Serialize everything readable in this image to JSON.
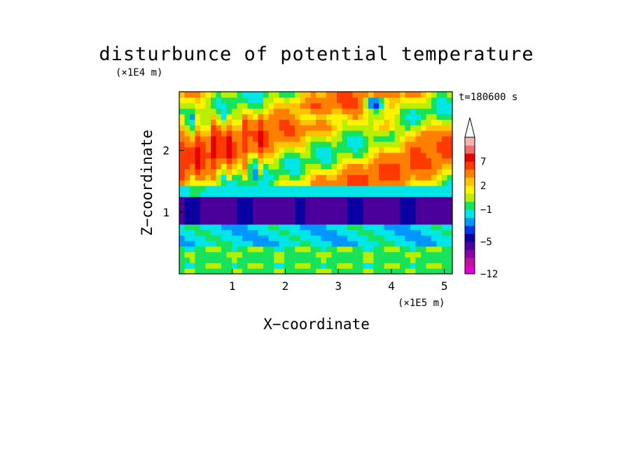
{
  "chart_data": {
    "type": "heatmap",
    "title": "disturbunce of potential temperature",
    "xlabel": "X−coordinate",
    "ylabel": "Z−coordinate",
    "x_unit": "(×1E5 m)",
    "y_unit": "(×1E4 m)",
    "time_label": "t=180600 s",
    "xlim": [
      0,
      5.15
    ],
    "ylim": [
      0,
      2.95
    ],
    "x_ticks": [
      1,
      2,
      3,
      4,
      5
    ],
    "y_ticks": [
      1,
      2
    ],
    "colorbar": {
      "levels": [
        -12,
        -11,
        -9,
        -7,
        -5,
        -4,
        -3,
        -2,
        -1,
        0,
        1,
        2,
        3,
        5,
        7,
        9,
        11
      ],
      "colors": [
        "#e100d2",
        "#c10fa0",
        "#8b00a8",
        "#4b009b",
        "#0a00a0",
        "#0036e6",
        "#0096ff",
        "#00e6e6",
        "#17e25a",
        "#b8ee00",
        "#fff200",
        "#ffc400",
        "#ff8000",
        "#ff3a00",
        "#e60000",
        "#f07070",
        "#f8b4b4"
      ],
      "tick_labels": [
        "−12",
        "−5",
        "−1",
        "2",
        "7"
      ],
      "tick_values": [
        -12,
        -5,
        -1,
        2,
        7
      ],
      "extend": "max"
    },
    "grid": false,
    "legend": "colorbar-right"
  }
}
